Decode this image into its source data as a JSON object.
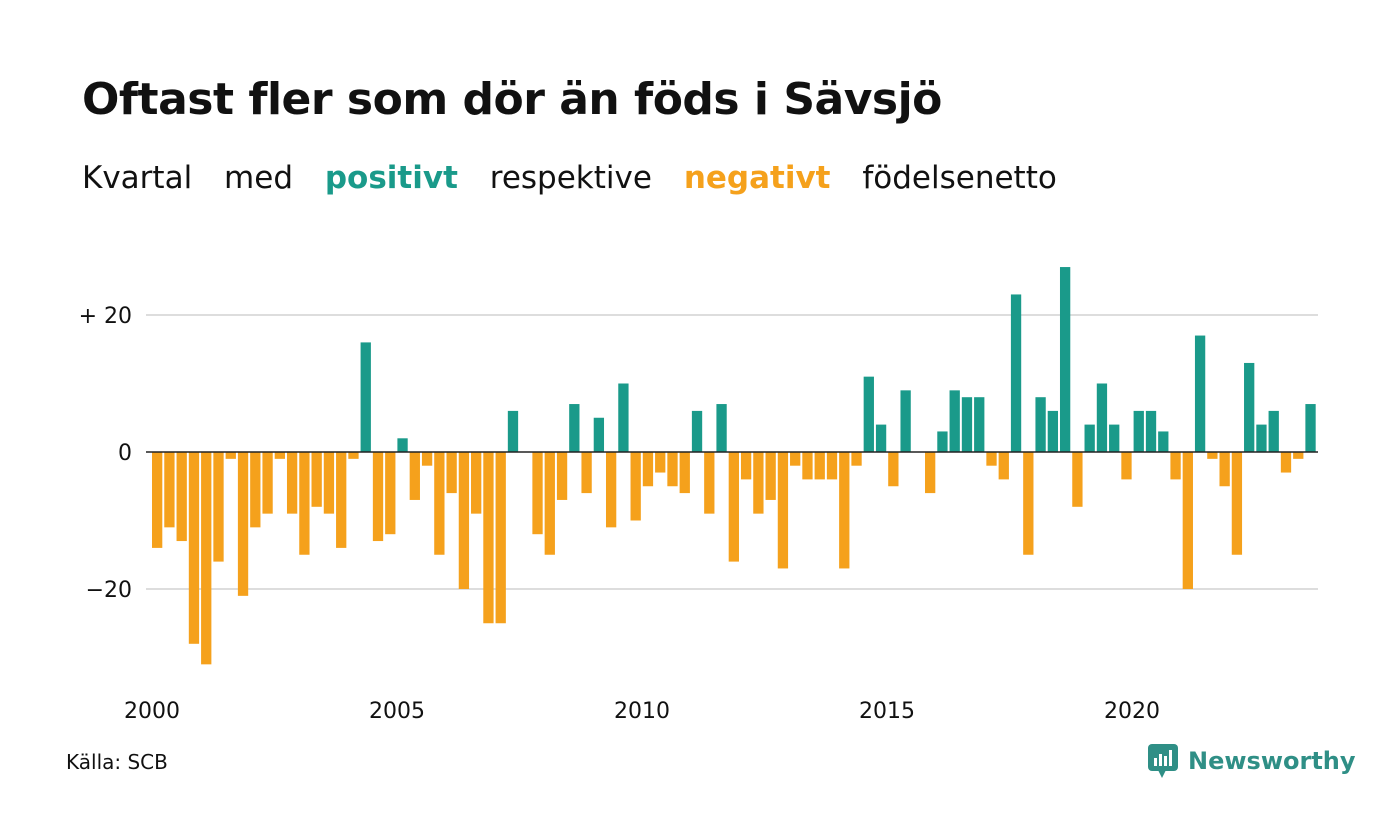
{
  "header": {
    "title": "Oftast fler som dör än föds i Sävsjö",
    "subtitle": {
      "part1": "Kvartal",
      "part2": "med",
      "positive_word": "positivt",
      "part3": "respektive",
      "negative_word": "negativt",
      "part4": "födelsenetto"
    }
  },
  "footer": {
    "source": "Källa: SCB",
    "brand": "Newsworthy",
    "brand_icon": "chart-bubble-icon"
  },
  "colors": {
    "positive": "#1a9a8a",
    "negative": "#f5a11c",
    "grid": "#dddddd",
    "text": "#111111",
    "brand": "#2f8f86"
  },
  "chart_data": {
    "type": "bar",
    "title": "Oftast fler som dör än föds i Sävsjö",
    "xlabel": "",
    "ylabel": "",
    "x_start": 2000,
    "x_step": 0.25,
    "xticks": [
      2000,
      2005,
      2010,
      2015,
      2020
    ],
    "xtick_labels": [
      "2000",
      "2005",
      "2010",
      "2015",
      "2020"
    ],
    "yticks": [
      -20,
      0,
      20
    ],
    "ytick_labels": [
      "−20",
      "0",
      "+ 20"
    ],
    "ylim": [
      -31,
      27
    ],
    "grid": true,
    "values": [
      -14,
      -11,
      -13,
      -28,
      -31,
      -16,
      -1,
      -21,
      -11,
      -9,
      -1,
      -9,
      -15,
      -8,
      -9,
      -14,
      -1,
      16,
      -13,
      -12,
      2,
      -7,
      -2,
      -15,
      -6,
      -20,
      -9,
      -25,
      -25,
      6,
      0,
      -12,
      -15,
      -7,
      7,
      -6,
      5,
      -11,
      10,
      -10,
      -5,
      -3,
      -5,
      -6,
      6,
      -9,
      7,
      -16,
      -4,
      -9,
      -7,
      -17,
      -2,
      -4,
      -4,
      -4,
      -17,
      -2,
      11,
      4,
      -5,
      9,
      0,
      -6,
      3,
      9,
      8,
      8,
      -2,
      -4,
      23,
      -15,
      8,
      6,
      27,
      -8,
      4,
      10,
      4,
      -4,
      6,
      6,
      3,
      -4,
      -20,
      17,
      -1,
      -5,
      -15,
      13,
      4,
      6,
      -3,
      -1,
      7
    ]
  }
}
